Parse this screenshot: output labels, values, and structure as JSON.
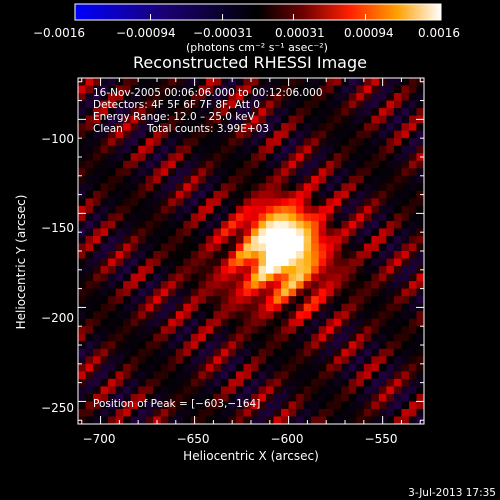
{
  "chart_data": {
    "type": "heatmap",
    "title": "Reconstructed RHESSI Image",
    "xlabel": "Heliocentric X (arcsec)",
    "ylabel": "Heliocentric Y (arcsec)",
    "xlim": [
      -712,
      -528
    ],
    "ylim": [
      -262,
      -78
    ],
    "x_ticks": [
      -700,
      -650,
      -600,
      -550
    ],
    "x_tick_labels": [
      "−700",
      "−650",
      "−600",
      "−550"
    ],
    "y_ticks": [
      -100,
      -150,
      -200,
      -250
    ],
    "y_tick_labels": [
      "−100",
      "−150",
      "−200",
      "−250"
    ],
    "colorbar": {
      "range": [
        -0.0016,
        0.0016
      ],
      "tick_values": [
        -0.0016,
        -0.00094,
        -0.00031,
        0.00031,
        0.00094,
        0.0016
      ],
      "tick_labels": [
        "−0.0016",
        "−0.00094",
        "−0.00031",
        "0.00031",
        "0.00094",
        "0.0016"
      ],
      "units": "(photons cm⁻² s⁻¹ asec⁻²)"
    },
    "annotations": {
      "time_range": "16-Nov-2005 00:06:06.000 to 00:12:06.000",
      "detectors": "Detectors: 4F 5F 6F 7F 8F, Att 0",
      "energy_range": "Energy Range: 12.0 – 25.0 keV",
      "method": "Clean",
      "total_counts": "Total counts: 3.99E+03",
      "peak_position": "Position of Peak = [−603,−164]"
    },
    "peak": {
      "x": -603,
      "y": -164
    },
    "date_stamp": "3-Jul-2013 17:35"
  }
}
